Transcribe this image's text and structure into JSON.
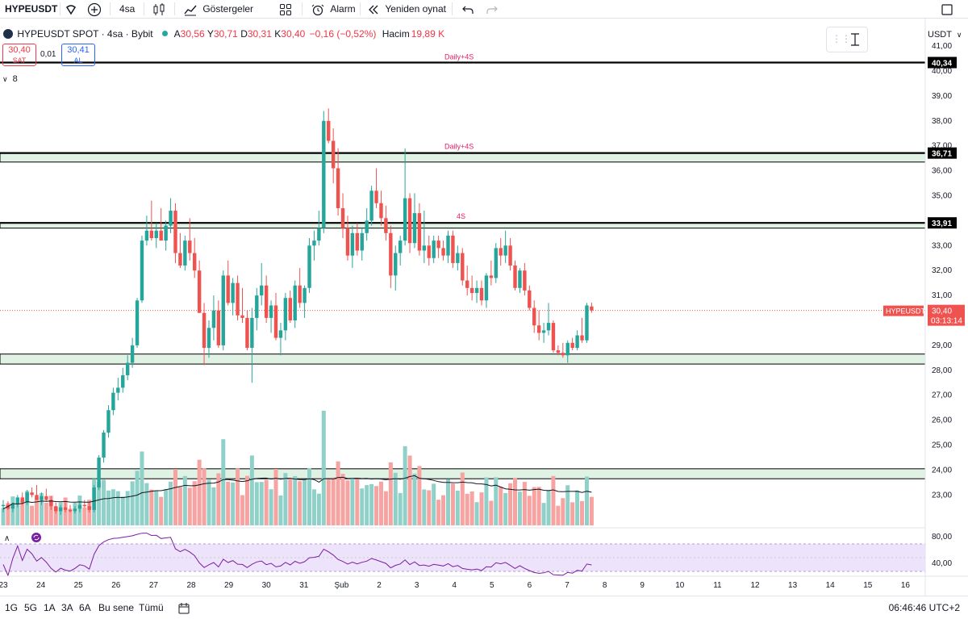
{
  "toolbar": {
    "symbol": "HYPEUSDT",
    "interval": "4sa",
    "indicators_label": "Göstergeler",
    "alarm_label": "Alarm",
    "replay_label": "Yeniden oynat"
  },
  "legend": {
    "title": "HYPEUSDT SPOT · 4sa · Bybit",
    "open_label": "A",
    "open": "30,56",
    "high_label": "Y",
    "high": "30,71",
    "low_label": "D",
    "low": "30,31",
    "close_label": "K",
    "close": "30,40",
    "change": "−0,16 (−0,52%)",
    "volume_label": "Hacim",
    "volume": "19,89 K"
  },
  "trade": {
    "sell_price": "30,40",
    "sell_label": "SAT",
    "spread": "0,01",
    "buy_price": "30,41",
    "buy_label": "AL"
  },
  "indicator_toggle": "8",
  "currency": "USDT",
  "colors": {
    "up": "#26a69a",
    "down": "#ef5350",
    "vol_up": "#8fd1c8",
    "vol_down": "#f6a3a1",
    "zone_fill": "#e0f2e4",
    "level_line": "#000000",
    "annotation": "#e91e63",
    "rsi_band": "#ede3fa",
    "rsi_line": "#7b1fa2"
  },
  "price_axis": {
    "ticks": [
      "41,00",
      "40,00",
      "39,00",
      "38,00",
      "37,00",
      "36,00",
      "35,00",
      "34,00",
      "33,00",
      "32,00",
      "31,00",
      "30,00",
      "29,00",
      "28,00",
      "27,00",
      "26,00",
      "25,00",
      "24,00",
      "23,00"
    ],
    "levels": [
      40.34,
      36.71,
      33.91
    ],
    "level_labels": [
      "40,34",
      "36,71",
      "33,91"
    ],
    "current_price_label": "HYPEUSDT",
    "current_price": "30,40",
    "countdown": "03:13:14"
  },
  "annotations": [
    "Daily+4S",
    "Daily+4S",
    "4S"
  ],
  "rsi_axis": [
    "80,00",
    "40,00"
  ],
  "time_axis": {
    "labels": [
      "23",
      "24",
      "25",
      "26",
      "27",
      "28",
      "29",
      "30",
      "31",
      "Şub",
      "2",
      "3",
      "4",
      "5",
      "6",
      "7",
      "8",
      "9",
      "10",
      "11",
      "12",
      "13",
      "14",
      "15",
      "16"
    ]
  },
  "bottom": {
    "ranges": [
      "1G",
      "5G",
      "1A",
      "3A",
      "6A",
      "Bu sene",
      "Tümü"
    ],
    "clock": "06:46:46 UTC+2"
  },
  "chart_data": {
    "type": "candlestick",
    "symbol": "HYPEUSDT",
    "interval": "4sa",
    "note_axes": "price 22.5-41.5 USDT",
    "candles_ohlc": [
      [
        22.55,
        22.8,
        22.3,
        22.6
      ],
      [
        22.6,
        22.75,
        22.4,
        22.45
      ],
      [
        22.45,
        22.7,
        22.3,
        22.65
      ],
      [
        22.65,
        23.0,
        22.5,
        22.9
      ],
      [
        22.9,
        23.1,
        22.6,
        22.7
      ],
      [
        22.7,
        23.2,
        22.6,
        23.1
      ],
      [
        23.1,
        23.3,
        22.9,
        23.0
      ],
      [
        23.0,
        23.4,
        22.8,
        22.8
      ],
      [
        22.8,
        23.1,
        22.6,
        22.95
      ],
      [
        22.95,
        23.25,
        22.75,
        22.8
      ],
      [
        22.8,
        22.95,
        22.4,
        22.55
      ],
      [
        22.55,
        22.7,
        22.25,
        22.35
      ],
      [
        22.35,
        22.6,
        22.2,
        22.5
      ],
      [
        22.5,
        22.7,
        22.3,
        22.4
      ],
      [
        22.4,
        22.6,
        22.3,
        22.35
      ],
      [
        22.35,
        22.55,
        22.25,
        22.45
      ],
      [
        22.45,
        22.7,
        22.3,
        22.6
      ],
      [
        22.6,
        22.8,
        22.5,
        22.55
      ],
      [
        22.55,
        22.7,
        22.3,
        22.4
      ],
      [
        22.4,
        23.4,
        22.3,
        23.3
      ],
      [
        23.3,
        24.6,
        23.2,
        24.5
      ],
      [
        24.5,
        25.6,
        24.3,
        25.5
      ],
      [
        25.5,
        26.6,
        25.3,
        26.4
      ],
      [
        26.4,
        27.3,
        26.2,
        27.1
      ],
      [
        27.1,
        27.7,
        26.8,
        27.3
      ],
      [
        27.3,
        28.1,
        27.1,
        27.8
      ],
      [
        27.8,
        28.6,
        27.6,
        28.3
      ],
      [
        28.3,
        29.3,
        28.1,
        29.0
      ],
      [
        29.0,
        30.9,
        28.9,
        30.8
      ],
      [
        30.8,
        33.4,
        30.7,
        33.2
      ],
      [
        33.2,
        34.2,
        33.0,
        33.6
      ],
      [
        33.6,
        34.8,
        33.2,
        33.3
      ],
      [
        33.3,
        33.9,
        32.9,
        33.6
      ],
      [
        33.6,
        34.5,
        33.3,
        33.2
      ],
      [
        33.2,
        34.0,
        32.8,
        33.8
      ],
      [
        33.8,
        34.9,
        33.5,
        34.4
      ],
      [
        34.4,
        34.7,
        32.3,
        32.7
      ],
      [
        32.7,
        33.5,
        32.1,
        32.2
      ],
      [
        32.2,
        33.4,
        32.0,
        33.2
      ],
      [
        33.2,
        34.1,
        32.4,
        32.7
      ],
      [
        32.7,
        33.3,
        31.7,
        32.0
      ],
      [
        32.0,
        32.4,
        30.3,
        30.3
      ],
      [
        30.3,
        30.7,
        28.2,
        28.9
      ],
      [
        28.9,
        30.0,
        28.5,
        29.7
      ],
      [
        29.7,
        31.0,
        29.2,
        30.4
      ],
      [
        30.4,
        30.8,
        28.9,
        29.0
      ],
      [
        29.0,
        32.0,
        28.8,
        31.8
      ],
      [
        31.8,
        32.4,
        30.6,
        30.7
      ],
      [
        30.7,
        31.7,
        30.2,
        31.5
      ],
      [
        31.5,
        31.8,
        30.0,
        30.2
      ],
      [
        30.2,
        31.3,
        29.9,
        30.1
      ],
      [
        30.1,
        30.4,
        28.8,
        28.9
      ],
      [
        28.9,
        30.5,
        27.5,
        30.1
      ],
      [
        30.1,
        31.3,
        29.6,
        31.0
      ],
      [
        31.0,
        32.3,
        30.6,
        31.4
      ],
      [
        31.4,
        31.8,
        29.9,
        30.1
      ],
      [
        30.1,
        30.8,
        29.5,
        30.6
      ],
      [
        30.6,
        31.1,
        29.2,
        29.3
      ],
      [
        29.3,
        29.9,
        28.6,
        29.6
      ],
      [
        29.6,
        31.1,
        29.2,
        30.9
      ],
      [
        30.9,
        31.2,
        29.9,
        30.0
      ],
      [
        30.0,
        31.6,
        29.7,
        31.4
      ],
      [
        31.4,
        32.1,
        30.5,
        30.7
      ],
      [
        30.7,
        31.4,
        30.1,
        31.3
      ],
      [
        31.3,
        33.3,
        31.1,
        33.0
      ],
      [
        33.0,
        33.6,
        32.4,
        33.2
      ],
      [
        33.2,
        34.4,
        33.0,
        33.7
      ],
      [
        33.7,
        38.4,
        33.5,
        38.0
      ],
      [
        38.0,
        38.5,
        37.1,
        37.2
      ],
      [
        37.2,
        37.7,
        35.5,
        36.1
      ],
      [
        36.1,
        36.9,
        34.2,
        34.5
      ],
      [
        34.5,
        35.1,
        33.3,
        33.7
      ],
      [
        33.7,
        34.2,
        32.4,
        32.6
      ],
      [
        32.6,
        33.8,
        32.1,
        33.5
      ],
      [
        33.5,
        33.9,
        32.6,
        32.8
      ],
      [
        32.8,
        33.7,
        32.4,
        33.5
      ],
      [
        33.5,
        34.5,
        33.2,
        34.0
      ],
      [
        34.0,
        35.4,
        33.8,
        35.2
      ],
      [
        35.2,
        36.1,
        34.5,
        34.7
      ],
      [
        34.7,
        35.2,
        33.8,
        34.1
      ],
      [
        34.1,
        34.6,
        33.2,
        33.5
      ],
      [
        33.5,
        33.8,
        31.3,
        31.8
      ],
      [
        31.8,
        33.0,
        31.2,
        32.7
      ],
      [
        32.7,
        33.4,
        32.2,
        33.2
      ],
      [
        33.2,
        36.9,
        33.0,
        34.9
      ],
      [
        34.9,
        35.1,
        32.7,
        33.1
      ],
      [
        33.1,
        35.1,
        32.9,
        34.3
      ],
      [
        34.3,
        34.7,
        32.6,
        32.8
      ],
      [
        32.8,
        34.4,
        32.3,
        33.0
      ],
      [
        33.0,
        33.4,
        32.2,
        32.5
      ],
      [
        32.5,
        33.4,
        32.3,
        33.2
      ],
      [
        33.2,
        33.4,
        32.5,
        32.9
      ],
      [
        32.9,
        33.2,
        32.4,
        32.6
      ],
      [
        32.6,
        33.6,
        32.3,
        33.4
      ],
      [
        33.4,
        33.6,
        32.1,
        32.3
      ],
      [
        32.3,
        33.0,
        32.0,
        32.7
      ],
      [
        32.7,
        32.9,
        31.4,
        31.6
      ],
      [
        31.6,
        32.2,
        31.0,
        31.3
      ],
      [
        31.3,
        31.8,
        30.8,
        31.1
      ],
      [
        31.1,
        31.6,
        30.7,
        31.3
      ],
      [
        31.3,
        31.6,
        30.6,
        30.8
      ],
      [
        30.8,
        31.9,
        30.5,
        31.8
      ],
      [
        31.8,
        32.4,
        31.4,
        31.7
      ],
      [
        31.7,
        33.1,
        31.5,
        32.9
      ],
      [
        32.9,
        33.3,
        32.2,
        32.6
      ],
      [
        32.6,
        33.6,
        32.3,
        33.0
      ],
      [
        33.0,
        33.3,
        32.0,
        32.2
      ],
      [
        32.2,
        32.4,
        31.2,
        31.3
      ],
      [
        31.3,
        32.1,
        31.1,
        32.0
      ],
      [
        32.0,
        32.3,
        31.0,
        31.2
      ],
      [
        31.2,
        31.4,
        30.4,
        30.5
      ],
      [
        30.5,
        30.8,
        29.5,
        29.8
      ],
      [
        29.8,
        30.4,
        29.2,
        29.5
      ],
      [
        29.5,
        29.9,
        29.1,
        29.6
      ],
      [
        29.6,
        30.7,
        29.4,
        29.9
      ],
      [
        29.9,
        30.0,
        28.7,
        28.8
      ],
      [
        28.8,
        29.0,
        28.6,
        28.7
      ],
      [
        28.7,
        29.1,
        28.5,
        28.6
      ],
      [
        28.6,
        29.2,
        28.3,
        29.1
      ],
      [
        29.1,
        29.3,
        28.8,
        28.9
      ],
      [
        28.9,
        29.6,
        28.8,
        29.4
      ],
      [
        29.4,
        30.1,
        29.1,
        29.2
      ],
      [
        29.2,
        30.7,
        29.1,
        30.6
      ],
      [
        30.56,
        30.71,
        30.31,
        30.4
      ]
    ],
    "volume_scale": "relative",
    "ma_overlay": true,
    "rsi_range": [
      30,
      90
    ]
  }
}
